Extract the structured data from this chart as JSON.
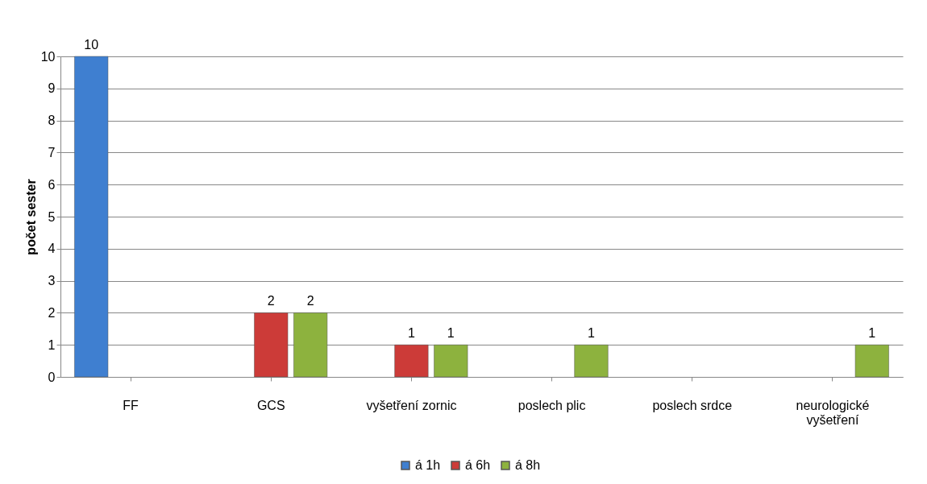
{
  "chart_data": {
    "type": "bar",
    "ylabel": "počet sester",
    "categories": [
      "FF",
      "GCS",
      "vyšetření zornic",
      "poslech plic",
      "poslech srdce",
      "neurologické vyšetření"
    ],
    "series": [
      {
        "name": "á 1h",
        "color": "#3f7fd0",
        "values": [
          10,
          null,
          null,
          null,
          null,
          null
        ]
      },
      {
        "name": "á 6h",
        "color": "#cc3b38",
        "values": [
          null,
          2,
          1,
          null,
          null,
          null
        ]
      },
      {
        "name": "á 8h",
        "color": "#8db23e",
        "values": [
          null,
          2,
          1,
          1,
          null,
          1
        ]
      }
    ],
    "ylim": [
      0,
      10
    ],
    "yticks": [
      0,
      1,
      2,
      3,
      4,
      5,
      6,
      7,
      8,
      9,
      10
    ],
    "grid": "y",
    "legend": "bottom",
    "data_labels": true
  }
}
